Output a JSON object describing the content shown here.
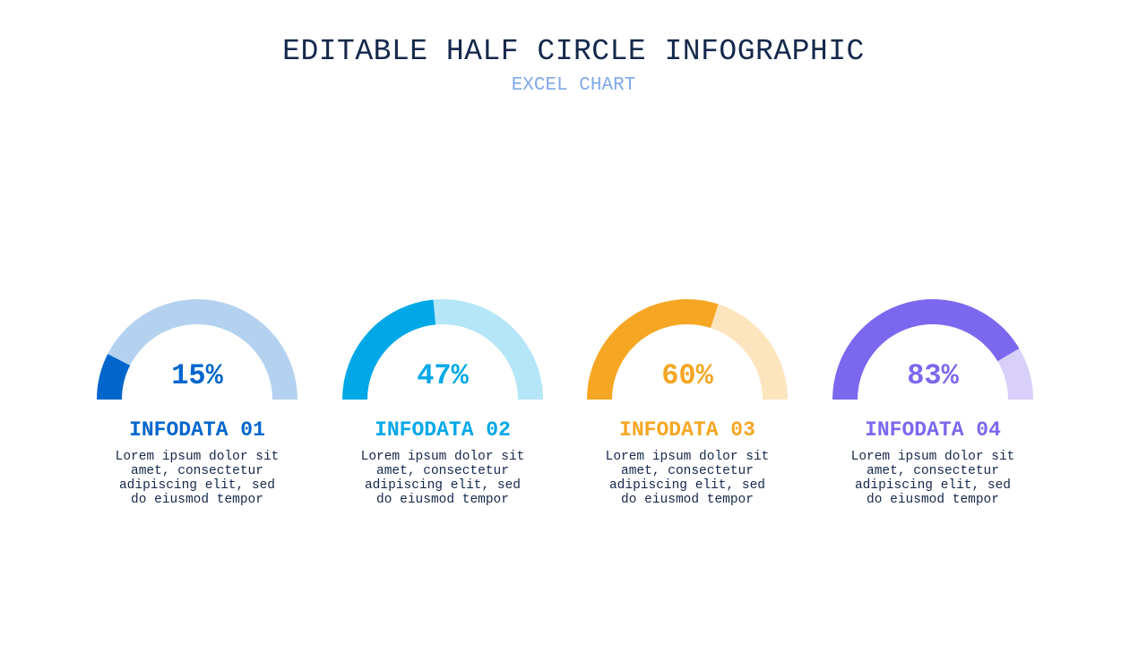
{
  "header": {
    "title": "EDITABLE HALF CIRCLE INFOGRAPHIC",
    "subtitle": "EXCEL CHART"
  },
  "chart_data": {
    "type": "pie",
    "items": [
      {
        "value": 15,
        "display": "15%",
        "label": "INFODATA 01",
        "description": "Lorem ipsum dolor sit amet, consectetur adipiscing elit, sed do eiusmod tempor",
        "color": "#0066cc",
        "track_color": "#b4d2f0"
      },
      {
        "value": 47,
        "display": "47%",
        "label": "INFODATA 02",
        "description": "Lorem ipsum dolor sit amet, consectetur adipiscing elit, sed do eiusmod tempor",
        "color": "#00a8e8",
        "track_color": "#b4e6f8"
      },
      {
        "value": 60,
        "display": "60%",
        "label": "INFODATA 03",
        "description": "Lorem ipsum dolor sit amet, consectetur adipiscing elit, sed do eiusmod tempor",
        "color": "#f5a623",
        "track_color": "#fce5bd"
      },
      {
        "value": 83,
        "display": "83%",
        "label": "INFODATA 04",
        "description": "Lorem ipsum dolor sit amet, consectetur adipiscing elit, sed do eiusmod tempor",
        "color": "#7b68ee",
        "track_color": "#d8d0f8"
      }
    ]
  }
}
